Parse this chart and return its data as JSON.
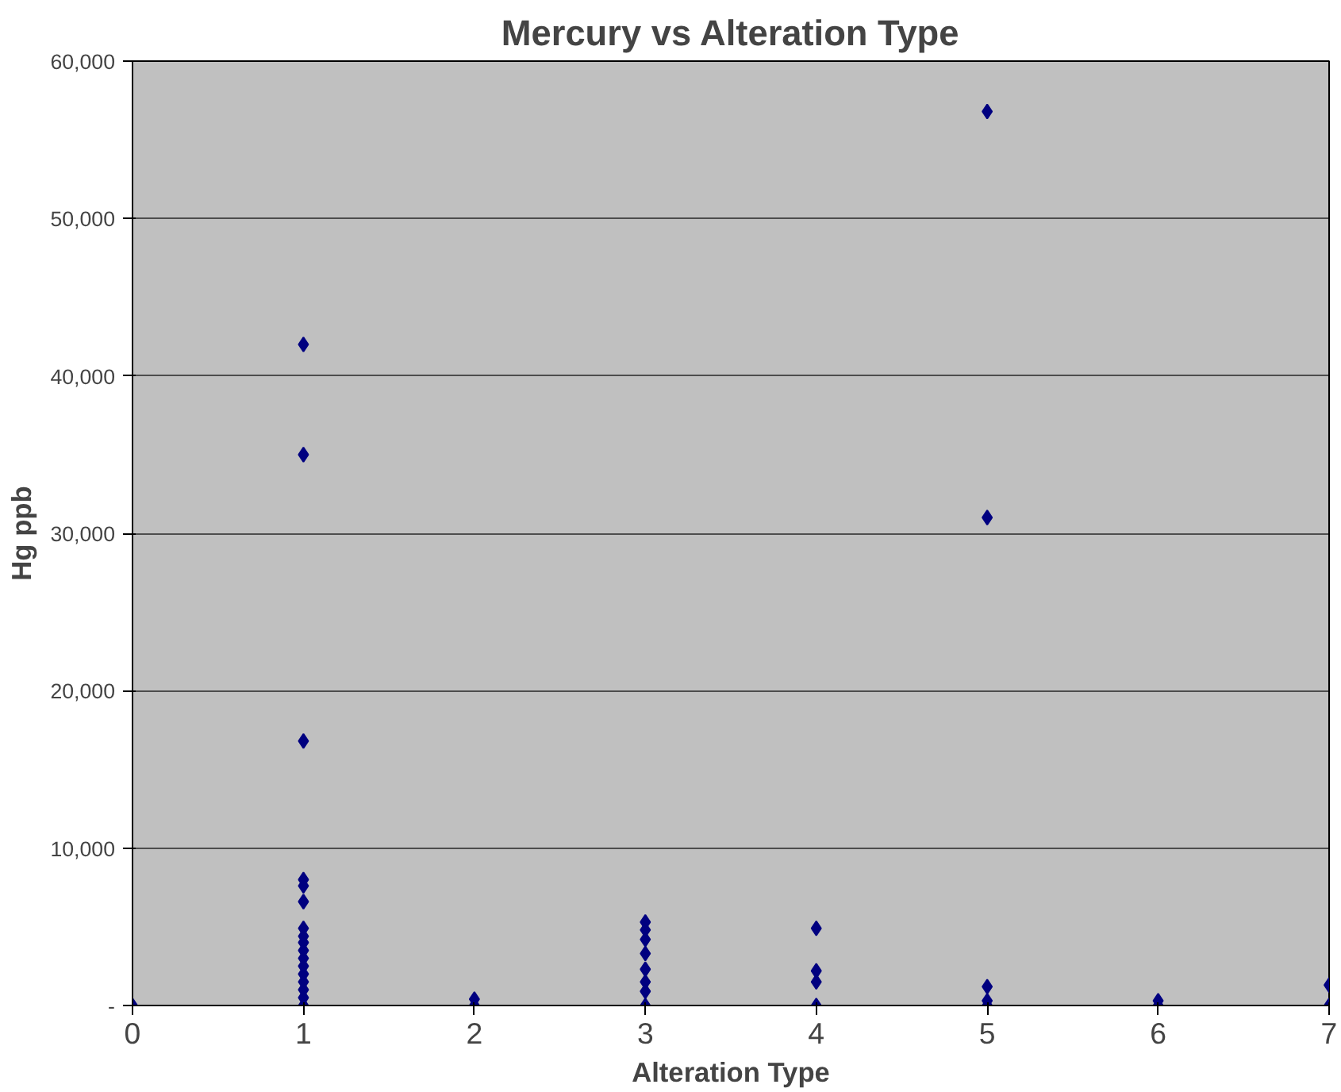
{
  "chart_data": {
    "type": "scatter",
    "title": "Mercury vs Alteration Type",
    "xlabel": "Alteration Type",
    "ylabel": "Hg ppb",
    "x": [
      0,
      1,
      1,
      1,
      1,
      1,
      1,
      1,
      1,
      1,
      1,
      1,
      1,
      1,
      1,
      1,
      1,
      1,
      2,
      2,
      3,
      3,
      3,
      3,
      3,
      3,
      3,
      3,
      4,
      4,
      4,
      4,
      5,
      5,
      5,
      5,
      5,
      6,
      6,
      7,
      7
    ],
    "series": [
      {
        "color": "#000080",
        "values": [
          0,
          42000,
          35000,
          16800,
          8000,
          7600,
          6600,
          4900,
          4400,
          4000,
          3500,
          3000,
          2500,
          2000,
          1500,
          1000,
          500,
          0,
          400,
          0,
          5300,
          4800,
          4200,
          3300,
          2300,
          1500,
          900,
          0,
          4900,
          2200,
          1500,
          0,
          56800,
          31000,
          1200,
          300,
          0,
          300,
          0,
          1300,
          0
        ]
      }
    ],
    "xlim": [
      0,
      7
    ],
    "xticks": [
      0,
      1,
      2,
      3,
      4,
      5,
      6,
      7
    ],
    "ylim": [
      0,
      60000
    ],
    "yticks": [
      {
        "value": 0,
        "label": "-"
      },
      {
        "value": 10000,
        "label": "10,000"
      },
      {
        "value": 20000,
        "label": "20,000"
      },
      {
        "value": 30000,
        "label": "30,000"
      },
      {
        "value": 40000,
        "label": "40,000"
      },
      {
        "value": 50000,
        "label": "50,000"
      },
      {
        "value": 60000,
        "label": "60,000"
      }
    ],
    "grid": "y",
    "marker": "diamond"
  }
}
